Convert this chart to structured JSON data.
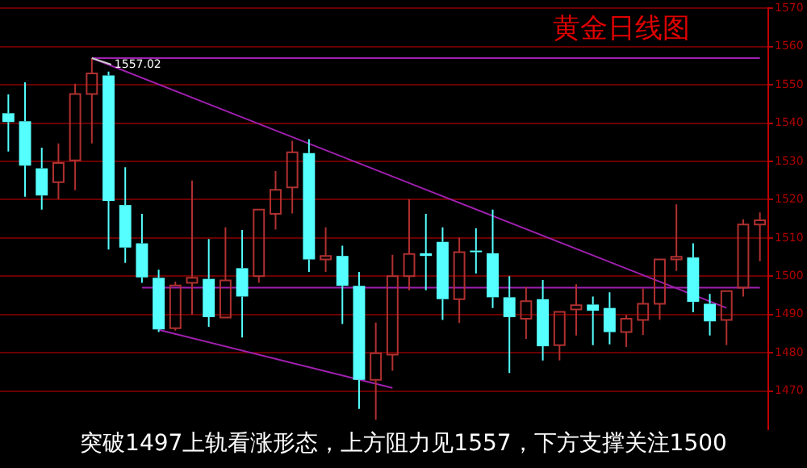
{
  "chart_data": {
    "type": "candlestick",
    "title": "黄金日线图",
    "categories": [
      null,
      null,
      null,
      null,
      null,
      null,
      null,
      null,
      null,
      null,
      null,
      null,
      null,
      null,
      null,
      null,
      null,
      null,
      null,
      null,
      null,
      null,
      null,
      null,
      null,
      null,
      null,
      null,
      null,
      null,
      null,
      null,
      null,
      null,
      null,
      null,
      null,
      null,
      null,
      null,
      null,
      null,
      null,
      null,
      null,
      null
    ],
    "ohlc": [
      [
        1542.6,
        1547.5,
        1532.6,
        1540.3
      ],
      [
        1540.5,
        1550.7,
        1520.8,
        1528.9
      ],
      [
        1528.2,
        1533.6,
        1517.4,
        1521.1
      ],
      [
        1524.6,
        1534.7,
        1520.1,
        1529.6
      ],
      [
        1530.3,
        1550.3,
        1522.5,
        1547.6
      ],
      [
        1547.6,
        1557.02,
        1534.7,
        1553.0
      ],
      [
        1552.5,
        1553.5,
        1507.0,
        1519.7
      ],
      [
        1518.6,
        1528.5,
        1503.5,
        1507.5
      ],
      [
        1508.6,
        1516.3,
        1498.3,
        1499.7
      ],
      [
        1499.6,
        1501.7,
        1485.4,
        1486.1
      ],
      [
        1486.4,
        1498.6,
        1485.8,
        1497.6
      ],
      [
        1498.3,
        1525.0,
        1490.0,
        1499.6
      ],
      [
        1499.3,
        1509.7,
        1486.8,
        1489.3
      ],
      [
        1489.2,
        1512.8,
        1489.2,
        1498.9
      ],
      [
        1502.1,
        1512.1,
        1484.0,
        1494.7
      ],
      [
        1500.0,
        1517.4,
        1498.3,
        1517.4
      ],
      [
        1516.3,
        1527.5,
        1512.2,
        1522.6
      ],
      [
        1523.2,
        1535.4,
        1516.4,
        1532.4
      ],
      [
        1532.2,
        1535.8,
        1501.1,
        1504.4
      ],
      [
        1504.4,
        1512.8,
        1501.1,
        1505.3
      ],
      [
        1505.3,
        1508.0,
        1487.5,
        1497.5
      ],
      [
        1497.5,
        1501.1,
        1465.3,
        1472.9
      ],
      [
        1472.9,
        1487.9,
        1462.5,
        1479.9
      ],
      [
        1479.5,
        1505.6,
        1475.3,
        1500.0
      ],
      [
        1500.0,
        1520.1,
        1496.3,
        1505.8
      ],
      [
        1506.0,
        1516.3,
        1496.3,
        1505.3
      ],
      [
        1509.0,
        1512.8,
        1488.6,
        1494.0
      ],
      [
        1494.0,
        1510.1,
        1487.8,
        1506.3
      ],
      [
        1506.7,
        1512.5,
        1500.7,
        1506.3
      ],
      [
        1506.0,
        1517.4,
        1491.7,
        1494.5
      ],
      [
        1494.5,
        1500.0,
        1474.7,
        1489.3
      ],
      [
        1488.9,
        1497.2,
        1483.6,
        1493.5
      ],
      [
        1494.0,
        1499.0,
        1478.0,
        1481.7
      ],
      [
        1482.0,
        1490.7,
        1478.0,
        1490.7
      ],
      [
        1491.3,
        1497.9,
        1484.5,
        1492.4
      ],
      [
        1492.6,
        1494.7,
        1482.0,
        1491.0
      ],
      [
        1491.7,
        1495.8,
        1482.2,
        1485.4
      ],
      [
        1485.4,
        1489.9,
        1481.5,
        1488.9
      ],
      [
        1488.6,
        1496.8,
        1484.7,
        1492.8
      ],
      [
        1492.8,
        1504.4,
        1488.6,
        1504.4
      ],
      [
        1504.4,
        1518.8,
        1501.4,
        1505.1
      ],
      [
        1504.9,
        1508.6,
        1490.6,
        1493.3
      ],
      [
        1492.8,
        1495.4,
        1484.5,
        1488.2
      ],
      [
        1488.6,
        1496.1,
        1482.0,
        1496.1
      ],
      [
        1497.0,
        1514.9,
        1494.7,
        1513.5
      ],
      [
        1513.5,
        1516.7,
        1503.9,
        1514.6
      ]
    ],
    "colors": [
      "#55ffff",
      "#55ffff",
      "#55ffff",
      "#b03030",
      "#b03030",
      "#b03030",
      "#55ffff",
      "#55ffff",
      "#55ffff",
      "#55ffff",
      "#b03030",
      "#b03030",
      "#55ffff",
      "#b03030",
      "#55ffff",
      "#b03030",
      "#b03030",
      "#b03030",
      "#55ffff",
      "#b03030",
      "#55ffff",
      "#55ffff",
      "#b03030",
      "#b03030",
      "#b03030",
      "#55ffff",
      "#55ffff",
      "#b03030",
      "#55ffff",
      "#55ffff",
      "#55ffff",
      "#b03030",
      "#55ffff",
      "#b03030",
      "#b03030",
      "#55ffff",
      "#55ffff",
      "#b03030",
      "#b03030",
      "#b03030",
      "#b03030",
      "#55ffff",
      "#55ffff",
      "#b03030",
      "#b03030",
      "#b03030"
    ],
    "series": [
      {
        "type": "line",
        "color": "#a020b0",
        "values": [
          null,
          null,
          null,
          null,
          null,
          1557,
          null,
          null,
          null,
          null,
          null,
          null,
          null,
          null,
          null,
          null,
          null,
          null,
          null,
          null,
          null,
          null,
          null,
          null,
          null,
          null,
          null,
          null,
          null,
          null,
          null,
          null,
          null,
          null,
          null,
          null,
          null,
          null,
          null,
          null,
          null,
          null,
          null,
          1491.7,
          null,
          null
        ]
      },
      {
        "type": "line",
        "color": "#a020b0",
        "values": [
          null,
          null,
          null,
          null,
          null,
          null,
          null,
          null,
          null,
          1486,
          null,
          null,
          null,
          null,
          null,
          null,
          null,
          null,
          null,
          null,
          null,
          null,
          null,
          1470.8,
          null,
          null,
          null,
          null,
          null,
          null,
          null,
          null,
          null,
          null,
          null,
          null,
          null,
          null,
          null,
          null,
          null,
          null,
          null,
          null,
          null,
          null
        ]
      },
      {
        "type": "line",
        "color": "#a020b0",
        "values": [
          null,
          null,
          null,
          null,
          null,
          1557,
          null,
          null,
          null,
          null,
          null,
          null,
          null,
          null,
          null,
          null,
          null,
          null,
          null,
          null,
          null,
          null,
          null,
          null,
          null,
          null,
          null,
          null,
          null,
          null,
          null,
          null,
          null,
          null,
          null,
          null,
          null,
          null,
          null,
          null,
          null,
          null,
          null,
          null,
          null,
          1557
        ]
      },
      {
        "type": "line",
        "color": "#a020b0",
        "values": [
          null,
          null,
          null,
          null,
          null,
          null,
          null,
          null,
          1497,
          null,
          null,
          null,
          null,
          null,
          null,
          null,
          null,
          null,
          null,
          null,
          null,
          null,
          null,
          null,
          null,
          null,
          null,
          null,
          null,
          null,
          null,
          null,
          null,
          null,
          null,
          null,
          null,
          null,
          null,
          null,
          null,
          null,
          null,
          null,
          null,
          1497
        ]
      }
    ],
    "ylim": [
      1460,
      1570
    ],
    "yticks": [
      1470,
      1480,
      1490,
      1500,
      1510,
      1520,
      1530,
      1540,
      1550,
      1560,
      1570
    ],
    "grid": "y",
    "legend": false,
    "tick_labels": "y",
    "annotations": [
      {
        "text": "1557.02",
        "y": 1557.02
      },
      "突破1497上轨看涨形态，上方阻力见1557，下方支撑关注1500"
    ]
  }
}
